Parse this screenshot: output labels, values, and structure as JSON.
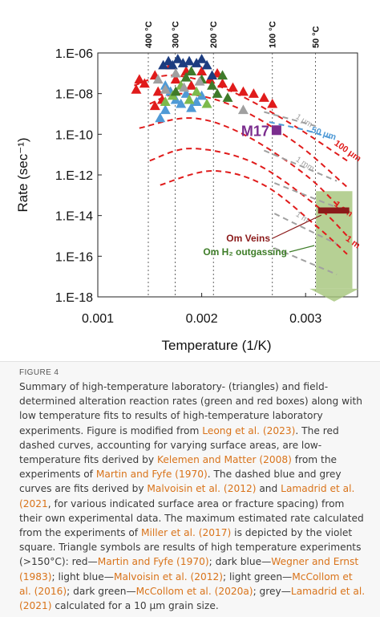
{
  "chart_data": {
    "type": "scatter",
    "xlabel": "Temperature (1/K)",
    "ylabel": "Rate (sec⁻¹)",
    "xlim": [
      0.001,
      0.0035
    ],
    "ylim": [
      -18,
      -6
    ],
    "y_scale": "log",
    "x_ticks": [
      0.001,
      0.002,
      0.003
    ],
    "x_tick_labels": [
      "0.001",
      "0.002",
      "0.003"
    ],
    "y_ticks": [
      -6,
      -8,
      -10,
      -12,
      -14,
      -16,
      -18
    ],
    "y_tick_labels": [
      "1.E-06",
      "1.E-08",
      "1.E-10",
      "1.E-12",
      "1.E-14",
      "1.E-16",
      "1.E-18"
    ],
    "temperature_markers": [
      {
        "label": "400 °C",
        "x": 0.001486
      },
      {
        "label": "300 °C",
        "x": 0.001745
      },
      {
        "label": "200 °C",
        "x": 0.002113
      },
      {
        "label": "100 °C",
        "x": 0.00268
      },
      {
        "label": "50 °C",
        "x": 0.003095
      }
    ],
    "red_fits": [
      {
        "x": [
          0.00135,
          0.0017,
          0.0022,
          0.0028,
          0.0034
        ],
        "y": [
          -7.6,
          -7.1,
          -7.7,
          -9.3,
          -11.3
        ]
      },
      {
        "x": [
          0.0015,
          0.0018,
          0.0023,
          0.0029,
          0.0034
        ],
        "y": [
          -8.5,
          -8.0,
          -8.6,
          -10.4,
          -12.6
        ]
      },
      {
        "x": [
          0.0014,
          0.0019,
          0.0024,
          0.003,
          0.0034
        ],
        "y": [
          -9.7,
          -9.2,
          -10.0,
          -12.0,
          -14.0
        ]
      },
      {
        "x": [
          0.0015,
          0.0019,
          0.0025,
          0.0031,
          0.0034
        ],
        "y": [
          -11.3,
          -10.7,
          -11.4,
          -13.5,
          -15.0
        ]
      },
      {
        "x": [
          0.0016,
          0.0021,
          0.0026,
          0.0031,
          0.0034
        ],
        "y": [
          -12.5,
          -11.8,
          -12.5,
          -14.5,
          -15.9
        ]
      }
    ],
    "red_fit_labels": [
      {
        "text": "100 μm",
        "x": 0.00327,
        "y": -10.5
      },
      {
        "text": "1 cm",
        "x": 0.00327,
        "y": -13.5
      },
      {
        "text": "1 m",
        "x": 0.00338,
        "y": -15.2
      }
    ],
    "blue_fits": [
      {
        "x": [
          0.00265,
          0.003,
          0.00325
        ],
        "y": [
          -9.4,
          -9.8,
          -10.2
        ]
      }
    ],
    "blue_fit_labels": [
      {
        "text": "50 μm",
        "x": 0.00305,
        "y": -9.9
      }
    ],
    "grey_fits": [
      {
        "x": [
          0.0026,
          0.0031
        ],
        "y": [
          -8.9,
          -9.6
        ]
      },
      {
        "x": [
          0.0026,
          0.0033
        ],
        "y": [
          -10.8,
          -12.3
        ]
      },
      {
        "x": [
          0.0027,
          0.0033
        ],
        "y": [
          -12.4,
          -13.6
        ]
      },
      {
        "x": [
          0.0027,
          0.0033
        ],
        "y": [
          -13.9,
          -15.4
        ]
      },
      {
        "x": [
          0.0027,
          0.0033
        ],
        "y": [
          -15.6,
          -16.9
        ]
      }
    ],
    "grey_fit_labels": [
      {
        "text": "1 μm",
        "x": 0.0029,
        "y": -9.2
      },
      {
        "text": "1 mm",
        "x": 0.0029,
        "y": -11.3
      },
      {
        "text": "1 m",
        "x": 0.0029,
        "y": -14.0
      }
    ],
    "triangles": {
      "red": [
        [
          0.00137,
          -7.8
        ],
        [
          0.0014,
          -7.3
        ],
        [
          0.00145,
          -7.5
        ],
        [
          0.00155,
          -7.1
        ],
        [
          0.00158,
          -7.9
        ],
        [
          0.00162,
          -8.3
        ],
        [
          0.0017,
          -6.6
        ],
        [
          0.00175,
          -7.3
        ],
        [
          0.00185,
          -6.9
        ],
        [
          0.0019,
          -7.6
        ],
        [
          0.002,
          -6.9
        ],
        [
          0.00208,
          -7.3
        ],
        [
          0.00215,
          -7.0
        ],
        [
          0.0022,
          -7.5
        ],
        [
          0.0023,
          -7.7
        ],
        [
          0.0024,
          -7.9
        ],
        [
          0.0025,
          -8.0
        ],
        [
          0.0026,
          -8.2
        ],
        [
          0.00268,
          -8.5
        ],
        [
          0.00155,
          -8.6
        ]
      ],
      "dark_blue": [
        [
          0.00163,
          -6.6
        ],
        [
          0.00168,
          -6.4
        ],
        [
          0.00172,
          -6.6
        ],
        [
          0.00177,
          -6.3
        ],
        [
          0.00182,
          -6.5
        ],
        [
          0.00188,
          -6.4
        ],
        [
          0.00195,
          -6.5
        ],
        [
          0.002,
          -6.3
        ],
        [
          0.00205,
          -6.6
        ],
        [
          0.0021,
          -7.1
        ]
      ],
      "light_blue": [
        [
          0.0016,
          -9.2
        ],
        [
          0.00165,
          -8.8
        ],
        [
          0.00175,
          -8.3
        ],
        [
          0.00185,
          -8.0
        ],
        [
          0.00195,
          -8.4
        ],
        [
          0.0017,
          -7.9
        ],
        [
          0.0018,
          -8.5
        ],
        [
          0.002,
          -8.1
        ],
        [
          0.0019,
          -8.7
        ],
        [
          0.00165,
          -7.6
        ]
      ],
      "light_green": [
        [
          0.00165,
          -8.4
        ],
        [
          0.00172,
          -8.1
        ],
        [
          0.0018,
          -7.6
        ],
        [
          0.00188,
          -8.3
        ],
        [
          0.00195,
          -7.9
        ],
        [
          0.00205,
          -8.5
        ]
      ],
      "dark_green": [
        [
          0.00175,
          -7.9
        ],
        [
          0.00185,
          -7.2
        ],
        [
          0.0019,
          -6.9
        ],
        [
          0.002,
          -7.3
        ],
        [
          0.0021,
          -7.6
        ],
        [
          0.00215,
          -8.0
        ],
        [
          0.0022,
          -7.1
        ],
        [
          0.00225,
          -8.2
        ]
      ],
      "grey": [
        [
          0.00158,
          -7.3
        ],
        [
          0.00165,
          -7.8
        ],
        [
          0.00175,
          -7.0
        ],
        [
          0.00183,
          -7.7
        ],
        [
          0.00198,
          -7.4
        ],
        [
          0.0024,
          -8.8
        ]
      ]
    },
    "m17": {
      "label": "M17",
      "x": 0.00272,
      "y": -9.8
    },
    "om_veins": {
      "label": "Om Veins",
      "x": [
        0.00312,
        0.00342
      ],
      "y": [
        -13.6,
        -13.9
      ]
    },
    "om_h2": {
      "label": "Om H₂ outgassing",
      "x": [
        0.0031,
        0.00345
      ],
      "y": [
        -12.8,
        -17.6
      ]
    }
  },
  "colors": {
    "red": "#e01b1b",
    "dark_blue": "#1c3c80",
    "light_blue": "#4f9ad6",
    "light_green": "#7dba4c",
    "dark_green": "#3f7a2a",
    "grey": "#a0a0a0",
    "violet": "#7b2d8e",
    "veins": "#8b1a1a",
    "h2_fill": "#a4c479",
    "h2_label": "#3e7d28"
  },
  "caption": {
    "figure_label": "FIGURE 4",
    "parts": [
      {
        "text": "Summary of high-temperature laboratory- (triangles) and field-determined alteration reaction rates (green and red boxes) along with low temperature fits to results of high-temperature laboratory experiments. Figure is modified from "
      },
      {
        "text": "Leong et al. (2023)",
        "ref": true
      },
      {
        "text": ". The red dashed curves, accounting for varying surface areas, are low-temperature fits derived by "
      },
      {
        "text": "Kelemen and Matter (2008)",
        "ref": true
      },
      {
        "text": " from the experiments of "
      },
      {
        "text": "Martin and Fyfe (1970)",
        "ref": true
      },
      {
        "text": ". The dashed blue and grey curves are fits derived by "
      },
      {
        "text": "Malvoisin et al. (2012)",
        "ref": true
      },
      {
        "text": " and "
      },
      {
        "text": "Lamadrid et al. (2021",
        "ref": true
      },
      {
        "text": ", for various indicated surface area or fracture spacing) from their own experimental data. The maximum estimated rate calculated from the experiments of "
      },
      {
        "text": "Miller et al. (2017)",
        "ref": true
      },
      {
        "text": " is depicted by the violet square. Triangle symbols are results of high temperature experiments (>150°C): red—"
      },
      {
        "text": "Martin and Fyfe (1970)",
        "ref": true
      },
      {
        "text": "; dark blue—"
      },
      {
        "text": "Wegner and Ernst (1983)",
        "ref": true
      },
      {
        "text": "; light blue—"
      },
      {
        "text": "Malvoisin et al. (2012)",
        "ref": true
      },
      {
        "text": "; light green—"
      },
      {
        "text": "McCollom et al. (2016)",
        "ref": true
      },
      {
        "text": "; dark green—"
      },
      {
        "text": "McCollom et al. (2020a)",
        "ref": true
      },
      {
        "text": "; grey—"
      },
      {
        "text": "Lamadrid et al. (2021)",
        "ref": true
      },
      {
        "text": " calculated for a 10 μm grain size."
      }
    ]
  }
}
